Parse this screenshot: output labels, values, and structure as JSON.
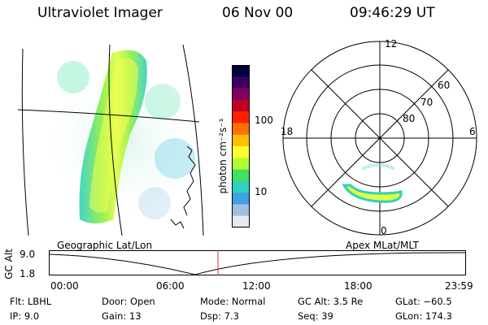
{
  "header": {
    "instrument": "Ultraviolet Imager",
    "date": "06 Nov 00",
    "time": "09:46:29 UT"
  },
  "colorbar": {
    "label": "photon cm⁻²s⁻¹",
    "ticks": [
      "100",
      "10"
    ],
    "colors": [
      "#000040",
      "#3a0060",
      "#800060",
      "#c00020",
      "#ff2000",
      "#ff7000",
      "#ffc000",
      "#ffff30",
      "#b0ff30",
      "#40e060",
      "#30d0c0",
      "#40a0e0",
      "#a0c0e0",
      "#e8e8f0"
    ]
  },
  "polar": {
    "mlt_labels": {
      "top": "12",
      "left": "18",
      "right": "6",
      "bottom": "0"
    },
    "lat_labels": [
      "60",
      "70",
      "80"
    ]
  },
  "altitude_plot": {
    "left_title": "Geographic Lat/Lon",
    "right_title": "Apex MLat/MLT",
    "axis_label": "GC Alt",
    "y_ticks": [
      "9.0",
      "1.8"
    ],
    "x_ticks": [
      "00:00",
      "06:00",
      "12:00",
      "18:00",
      "23:59"
    ],
    "current_time_color": "#e03030"
  },
  "info": {
    "row1": {
      "flt": "Flt: LBHL",
      "door": "Door: Open",
      "mode": "Mode: Normal",
      "gcalt": "GC Alt: 3.5 Re",
      "glat": "GLat: −60.5"
    },
    "row2": {
      "ip": "IP:  9.0",
      "gain": "Gain: 13",
      "dsp": "Dsp:     7.3",
      "seq": "Seq: 39",
      "glon": "GLon: 174.3"
    }
  }
}
